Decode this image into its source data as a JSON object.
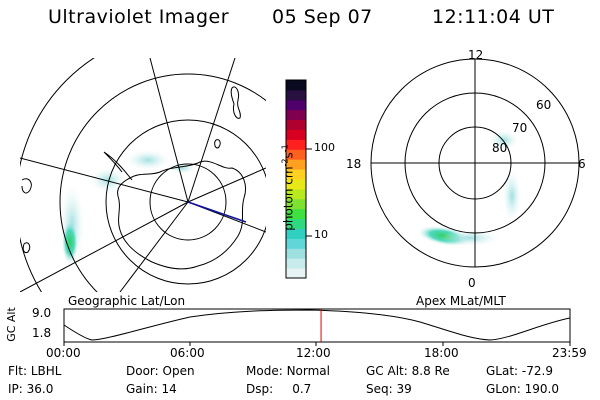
{
  "header": {
    "app_title": "Ultraviolet Imager",
    "date": "05 Sep 07",
    "time": "12:11:04 UT"
  },
  "geo_panel": {
    "label": "Geographic Lat/Lon"
  },
  "mlt_panel": {
    "label": "Apex MLat/MLT",
    "mlt_labels": {
      "top": "12",
      "left": "18",
      "right": "6",
      "bottom": "0"
    },
    "lat_labels": [
      "60",
      "70",
      "80"
    ]
  },
  "colorbar": {
    "unit_label": "photon cm",
    "unit_exp1": "-2",
    "unit_s": "s",
    "unit_exp2": "-1",
    "ticks": [
      "100",
      "10"
    ],
    "colors": [
      "#e8f4f4",
      "#c8ecec",
      "#9ee0e0",
      "#60d6d8",
      "#30cfc0",
      "#30d880",
      "#40e040",
      "#7ee030",
      "#b8e820",
      "#e8e818",
      "#ffd020",
      "#ffa020",
      "#ff6020",
      "#ff2020",
      "#d80020",
      "#b00030",
      "#800050",
      "#50006a",
      "#281040",
      "#0a0a20"
    ]
  },
  "timeline": {
    "axis_label": "GC Alt",
    "y_max": "9.0",
    "y_min": "1.8",
    "ticks": [
      "00:00",
      "06:00",
      "12:00",
      "18:00",
      "23:59"
    ],
    "current_time_fraction": 0.508
  },
  "info": {
    "filter": {
      "label": "Flt:",
      "value": "LBHL"
    },
    "ip": {
      "label": "IP:",
      "value": "36.0"
    },
    "door": {
      "label": "Door:",
      "value": "Open"
    },
    "gain": {
      "label": "Gain:",
      "value": "14"
    },
    "mode": {
      "label": "Mode:",
      "value": "Normal"
    },
    "dsp": {
      "label": "Dsp:",
      "value": "0.7"
    },
    "gc_alt": {
      "label": "GC Alt:",
      "value": "8.8 Re"
    },
    "seq": {
      "label": "Seq:",
      "value": "39"
    },
    "glat": {
      "label": "GLat:",
      "value": "-72.9"
    },
    "glon": {
      "label": "GLon:",
      "value": "190.0"
    }
  }
}
